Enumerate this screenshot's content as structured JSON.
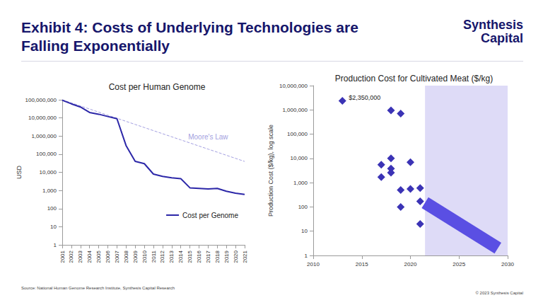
{
  "header": {
    "title": [
      "Exhibit 4: Costs of Underlying Technologies are",
      "Falling Exponentially"
    ],
    "logo": [
      "Synthesis",
      "Capital"
    ]
  },
  "footer": {
    "source": "Source: National Human Genome Research Institute, Synthesis Capital Research",
    "copyright": "© 2023 Synthesis Capital"
  },
  "chart_data": [
    {
      "type": "line",
      "title": "Cost per Human Genome",
      "ylabel": "USD",
      "categories": [
        "2001",
        "2002",
        "2003",
        "2004",
        "2005",
        "2006",
        "2007",
        "2008",
        "2009",
        "2010",
        "2011",
        "2012",
        "2013",
        "2014",
        "2015",
        "2016",
        "2017",
        "2018",
        "2019",
        "2020",
        "2021"
      ],
      "series": [
        {
          "name": "Cost per Genome",
          "color": "#2c27a8",
          "line_style": "solid",
          "values": [
            95000000,
            60000000,
            40000000,
            20000000,
            16000000,
            12000000,
            9000000,
            300000,
            40000,
            30000,
            8000,
            6000,
            5000,
            4500,
            1400,
            1300,
            1200,
            1300,
            900,
            700,
            600
          ]
        },
        {
          "name": "Moore's Law",
          "color": "#a39fe0",
          "line_style": "dashed",
          "values": [
            100000000,
            67600000,
            45700000,
            30900000,
            20900000,
            14100000,
            9550000,
            6460000,
            4360000,
            2950000,
            1990000,
            1350000,
            911000,
            616000,
            416000,
            281000,
            190000,
            129000,
            87000,
            58800,
            39800
          ]
        }
      ],
      "ylim": [
        1,
        100000000
      ],
      "yticks": [
        1,
        10,
        100,
        {
          "value": 1000,
          "label": "1,000"
        },
        {
          "value": 10000,
          "label": "10,000"
        },
        {
          "value": 100000,
          "label": "100,000"
        },
        {
          "value": 1000000,
          "label": "1,000,000"
        },
        {
          "value": 10000000,
          "label": "10,000,000"
        },
        {
          "value": 100000000,
          "label": "100,000,000"
        }
      ],
      "log": "y",
      "grid": false,
      "legend": "lower right"
    },
    {
      "type": "scatter",
      "title": "Production Cost for Cultivated Meat ($/kg)",
      "ylabel": "Production Cost ($/kg), log scale",
      "x": [
        2013,
        2018,
        2019,
        2017,
        2017,
        2018,
        2018,
        2018,
        2019,
        2019,
        2020,
        2020,
        2021,
        2021,
        2021
      ],
      "values": [
        2350000,
        950000,
        700000,
        5500,
        1700,
        10000,
        3800,
        2600,
        500,
        100,
        7000,
        550,
        600,
        170,
        20
      ],
      "color": "#3b33b5",
      "marker": "diamond",
      "xlim": [
        2010,
        2030
      ],
      "xticks": [
        2010,
        2015,
        2020,
        2025,
        2030
      ],
      "ylim": [
        1,
        10000000
      ],
      "yticks": [
        1,
        10,
        100,
        {
          "value": 1000,
          "label": "1,000"
        },
        {
          "value": 10000,
          "label": "10,000"
        },
        {
          "value": 100000,
          "label": "100,000"
        },
        {
          "value": 1000000,
          "label": "1,000,000"
        },
        {
          "value": 10000000,
          "label": "10,000,000"
        }
      ],
      "log": "y",
      "grid": false,
      "annotations": [
        {
          "text": "$2,350,000",
          "x": 2013,
          "y": 2350000
        }
      ],
      "projection_range": [
        2021.5,
        2030
      ],
      "trend_arrow": {
        "x": [
          2021.5,
          2029
        ],
        "y": [
          150,
          2
        ]
      }
    }
  ]
}
